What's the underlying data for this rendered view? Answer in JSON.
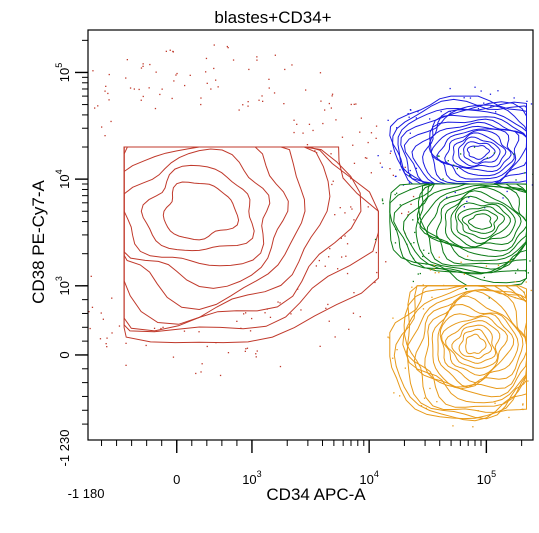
{
  "chart_data": {
    "type": "contour",
    "title": "blastes+CD34+",
    "xlabel": "CD34 APC-A",
    "ylabel": "CD38 PE-Cy7-A",
    "x_scale": "biexponential",
    "y_scale": "biexponential",
    "xlim": [
      -1180,
      250000
    ],
    "ylim": [
      -1230,
      250000
    ],
    "x_tick_labels": [
      {
        "value": -1180,
        "label": "-1 180"
      },
      {
        "value": 0,
        "label": "0"
      },
      {
        "value": 1000,
        "base": "10",
        "exp": "3"
      },
      {
        "value": 10000,
        "base": "10",
        "exp": "4"
      },
      {
        "value": 100000,
        "base": "10",
        "exp": "5"
      }
    ],
    "y_tick_labels": [
      {
        "value": -1230,
        "label": "-1 230"
      },
      {
        "value": 0,
        "label": "0"
      },
      {
        "value": 1000,
        "base": "10",
        "exp": "3"
      },
      {
        "value": 10000,
        "base": "10",
        "exp": "4"
      },
      {
        "value": 100000,
        "base": "10",
        "exp": "5"
      }
    ],
    "grid": false,
    "populations": [
      {
        "color": "#c0392b",
        "peak": {
          "x": 300,
          "y": 5000
        },
        "x_range": [
          -700,
          12000
        ],
        "y_range": [
          40,
          20000
        ]
      },
      {
        "color": "#1a1ae0",
        "peak": {
          "x": 85000,
          "y": 18000
        },
        "x_range": [
          15000,
          220000
        ],
        "y_range": [
          9000,
          60000
        ]
      },
      {
        "color": "#0a7a14",
        "peak": {
          "x": 90000,
          "y": 4000
        },
        "x_range": [
          15000,
          220000
        ],
        "y_range": [
          1000,
          9000
        ]
      },
      {
        "color": "#e89a1a",
        "peak": {
          "x": 80000,
          "y": 150
        },
        "x_range": [
          15000,
          220000
        ],
        "y_range": [
          -1000,
          1000
        ]
      }
    ]
  }
}
